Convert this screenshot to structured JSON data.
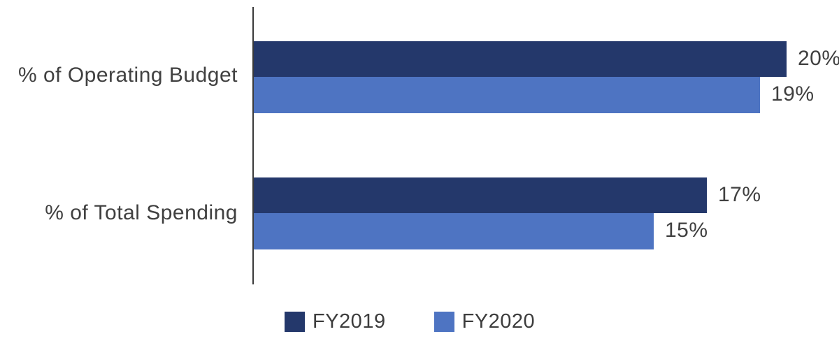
{
  "chart_data": {
    "type": "bar",
    "orientation": "horizontal",
    "title": "",
    "categories": [
      "% of Operating Budget",
      "% of Total Spending"
    ],
    "series": [
      {
        "name": "FY2019",
        "color": "#24386B",
        "values": [
          20,
          17
        ],
        "labels": [
          "20%",
          "17%"
        ]
      },
      {
        "name": "FY2020",
        "color": "#4E74C2",
        "values": [
          19,
          15
        ],
        "labels": [
          "19%",
          "15%"
        ]
      }
    ],
    "xlim": [
      0,
      21
    ],
    "grid": false,
    "legend_position": "bottom",
    "axis_color": "#3a3a3a",
    "label_color": "#404040"
  },
  "legend": {
    "items": [
      {
        "label": "FY2019",
        "color": "#24386B"
      },
      {
        "label": "FY2020",
        "color": "#4E74C2"
      }
    ]
  }
}
